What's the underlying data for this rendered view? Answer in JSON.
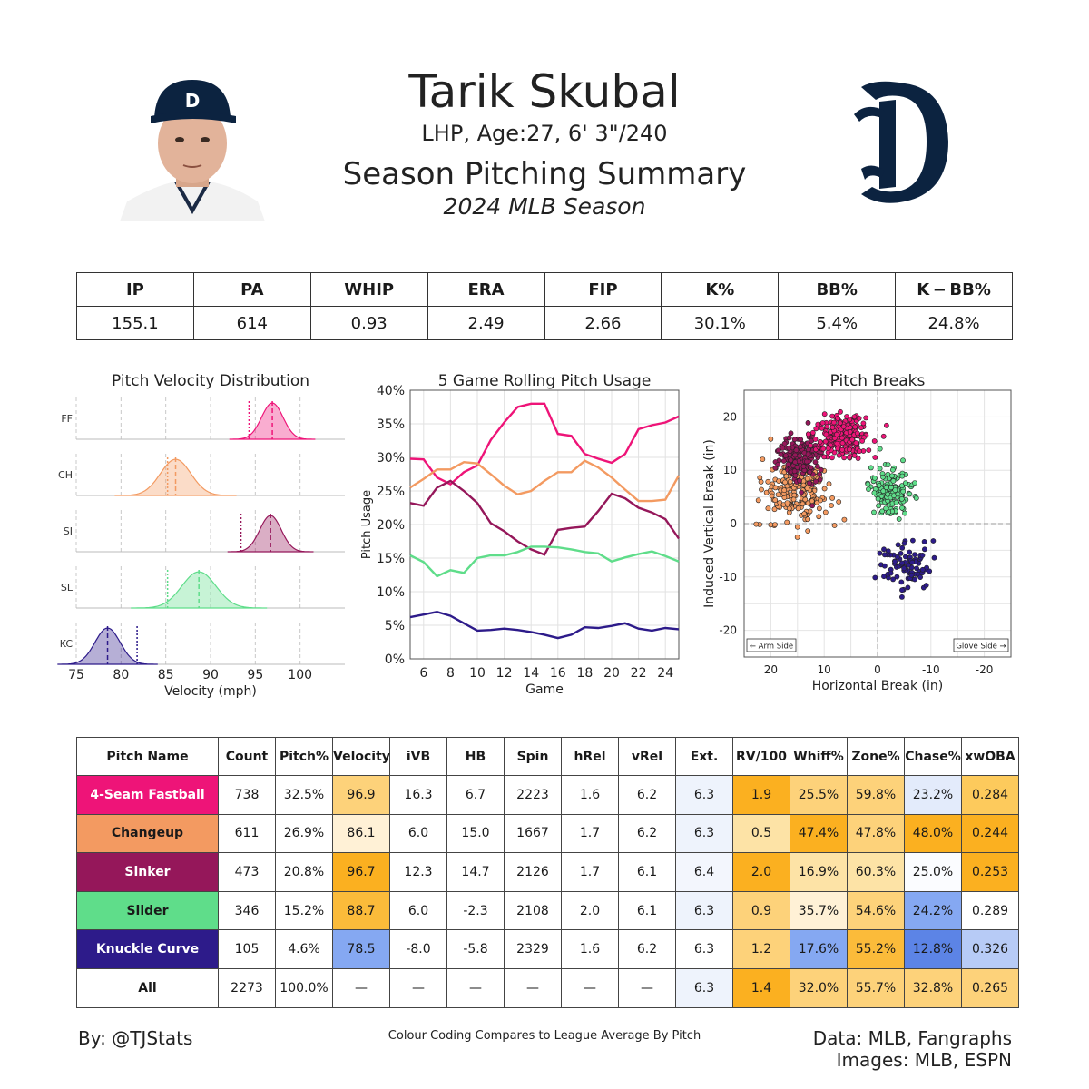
{
  "header": {
    "name": "Tarik Skubal",
    "bio": "LHP, Age:27, 6' 3\"/240",
    "subtitle": "Season Pitching Summary",
    "season": "2024 MLB Season"
  },
  "stats": {
    "headers": [
      "IP",
      "PA",
      "WHIP",
      "ERA",
      "FIP",
      "K%",
      "BB%",
      "K − BB%"
    ],
    "values": [
      "155.1",
      "614",
      "0.93",
      "2.49",
      "2.66",
      "30.1%",
      "5.4%",
      "24.8%"
    ]
  },
  "colors": {
    "FF": "#ee1478",
    "CH": "#f39a61",
    "SI": "#95175a",
    "SL": "#5fdd8a",
    "KC": "#2d1b8a"
  },
  "chart_data": [
    {
      "type": "area",
      "title": "Pitch Velocity Distribution",
      "xlabel": "Velocity (mph)",
      "ylabel": "",
      "xlim": [
        75,
        105
      ],
      "xticks": [
        "75",
        "80",
        "85",
        "90",
        "95",
        "100"
      ],
      "grid": true,
      "series": [
        {
          "name": "FF",
          "mean": 96.9,
          "sd": 1.2,
          "league_avg": 94.3
        },
        {
          "name": "CH",
          "mean": 86.1,
          "sd": 1.7,
          "league_avg": 85.2
        },
        {
          "name": "SI",
          "mean": 96.7,
          "sd": 1.2,
          "league_avg": 93.4
        },
        {
          "name": "SL",
          "mean": 88.7,
          "sd": 1.9,
          "league_avg": 85.2
        },
        {
          "name": "KC",
          "mean": 78.5,
          "sd": 1.4,
          "league_avg": 81.8
        }
      ]
    },
    {
      "type": "line",
      "title": "5 Game Rolling Pitch Usage",
      "xlabel": "Game",
      "ylabel": "Pitch Usage",
      "xlim": [
        5,
        25
      ],
      "ylim": [
        0,
        40
      ],
      "xticks": [
        "6",
        "8",
        "10",
        "12",
        "14",
        "16",
        "18",
        "20",
        "22",
        "24"
      ],
      "yticks": [
        "0%",
        "5%",
        "10%",
        "15%",
        "20%",
        "25%",
        "30%",
        "35%",
        "40%"
      ],
      "grid": true,
      "x": [
        5,
        6,
        7,
        8,
        9,
        10,
        11,
        12,
        13,
        14,
        15,
        16,
        17,
        18,
        19,
        20,
        21,
        22,
        23,
        24,
        25
      ],
      "series": [
        {
          "key": "FF",
          "values": [
            29.8,
            29.7,
            27,
            26,
            27.8,
            28.8,
            32.6,
            35.2,
            37.5,
            38,
            38,
            33.5,
            33.2,
            30.5,
            29.8,
            29.2,
            30.5,
            34.2,
            34.8,
            35.2,
            36.1
          ]
        },
        {
          "key": "CH",
          "values": [
            25.5,
            26.8,
            28.2,
            28.2,
            29.3,
            29.1,
            27.5,
            25.8,
            24.5,
            25,
            26.5,
            27.8,
            27.8,
            29.5,
            28.5,
            27,
            25.2,
            23.5,
            23.5,
            23.7,
            27.3
          ]
        },
        {
          "key": "SI",
          "values": [
            23.2,
            22.8,
            25.5,
            26.5,
            25,
            23.2,
            20.2,
            19,
            17.5,
            16.3,
            15.5,
            19.2,
            19.5,
            19.7,
            22,
            24.6,
            23.9,
            22.5,
            21.8,
            20.8,
            17.9
          ]
        },
        {
          "key": "SL",
          "values": [
            15.4,
            14.4,
            12.3,
            13.2,
            12.8,
            15,
            15.4,
            15.4,
            15.9,
            16.7,
            16.7,
            16.6,
            16.3,
            15.9,
            15.7,
            14.5,
            15.1,
            15.6,
            16,
            15.3,
            14.5
          ]
        },
        {
          "key": "KC",
          "values": [
            6.2,
            6.6,
            7,
            6.4,
            5.3,
            4.2,
            4.3,
            4.5,
            4.3,
            4,
            3.6,
            3.1,
            3.6,
            4.7,
            4.6,
            4.9,
            5.3,
            4.5,
            4.2,
            4.6,
            4.4
          ]
        }
      ]
    },
    {
      "type": "scatter",
      "title": "Pitch Breaks",
      "xlabel": "Horizontal Break (in)",
      "ylabel": "Induced Vertical Break (in)",
      "xlim": [
        25,
        -25
      ],
      "ylim": [
        -25,
        25
      ],
      "xticks": [
        "20",
        "10",
        "0",
        "-10",
        "-20"
      ],
      "yticks": [
        "20",
        "10",
        "0",
        "-10",
        "-20"
      ],
      "grid": true,
      "annotations": [
        "← Arm Side",
        "Glove Side →"
      ],
      "series": [
        {
          "key": "FF",
          "hb_mean": 6.7,
          "ivb_mean": 16.3,
          "sd_hb": 2.4,
          "sd_ivb": 2.0,
          "n": 260
        },
        {
          "key": "CH",
          "hb_mean": 15.0,
          "ivb_mean": 6.0,
          "sd_hb": 3.0,
          "sd_ivb": 3.0,
          "n": 220
        },
        {
          "key": "SI",
          "hb_mean": 14.7,
          "ivb_mean": 12.3,
          "sd_hb": 2.0,
          "sd_ivb": 1.9,
          "n": 180
        },
        {
          "key": "SL",
          "hb_mean": -2.3,
          "ivb_mean": 6.0,
          "sd_hb": 1.8,
          "sd_ivb": 2.2,
          "n": 150
        },
        {
          "key": "KC",
          "hb_mean": -5.8,
          "ivb_mean": -8.0,
          "sd_hb": 2.4,
          "sd_ivb": 2.2,
          "n": 90
        }
      ]
    },
    {
      "type": "table",
      "headers": [
        "Pitch Name",
        "Count",
        "Pitch%",
        "Velocity",
        "iVB",
        "HB",
        "Spin",
        "hRel",
        "vRel",
        "Ext.",
        "RV/100",
        "Whiff%",
        "Zone%",
        "Chase%",
        "xwOBA"
      ],
      "rows": [
        {
          "key": "FF",
          "name": "4-Seam Fastball",
          "text": "#ffffff",
          "cells": [
            "738",
            "32.5%",
            "96.9",
            "16.3",
            "6.7",
            "2223",
            "1.6",
            "6.2",
            "6.3",
            "1.9",
            "25.5%",
            "59.8%",
            "23.2%",
            "0.284"
          ],
          "bg": [
            "#ffffff",
            "#ffffff",
            "#fdd27a",
            "#ffffff",
            "#ffffff",
            "#ffffff",
            "#ffffff",
            "#ffffff",
            "#eef3fc",
            "#fbb020",
            "#fdd27a",
            "#fdd27a",
            "#e3ebfb",
            "#fdca5c"
          ]
        },
        {
          "key": "CH",
          "name": "Changeup",
          "text": "#1a1a1a",
          "cells": [
            "611",
            "26.9%",
            "86.1",
            "6.0",
            "15.0",
            "1667",
            "1.7",
            "6.2",
            "6.3",
            "0.5",
            "47.4%",
            "47.8%",
            "48.0%",
            "0.244"
          ],
          "bg": [
            "#ffffff",
            "#ffffff",
            "#fff1d6",
            "#ffffff",
            "#ffffff",
            "#ffffff",
            "#ffffff",
            "#ffffff",
            "#eef3fc",
            "#fde3a6",
            "#fbb020",
            "#fdd27a",
            "#fbb020",
            "#fbb020"
          ]
        },
        {
          "key": "SI",
          "name": "Sinker",
          "text": "#ffffff",
          "cells": [
            "473",
            "20.8%",
            "96.7",
            "12.3",
            "14.7",
            "2126",
            "1.7",
            "6.1",
            "6.4",
            "2.0",
            "16.9%",
            "60.3%",
            "25.0%",
            "0.253"
          ],
          "bg": [
            "#ffffff",
            "#ffffff",
            "#fbb020",
            "#ffffff",
            "#ffffff",
            "#ffffff",
            "#ffffff",
            "#ffffff",
            "#f3f6fd",
            "#fbb020",
            "#fde3a6",
            "#fde3a6",
            "#fbfcff",
            "#fbb020"
          ]
        },
        {
          "key": "SL",
          "name": "Slider",
          "text": "#1a1a1a",
          "cells": [
            "346",
            "15.2%",
            "88.7",
            "6.0",
            "-2.3",
            "2108",
            "2.0",
            "6.1",
            "6.3",
            "0.9",
            "35.7%",
            "54.6%",
            "24.2%",
            "0.289"
          ],
          "bg": [
            "#ffffff",
            "#ffffff",
            "#fbbb3a",
            "#ffffff",
            "#ffffff",
            "#ffffff",
            "#ffffff",
            "#ffffff",
            "#eef3fc",
            "#fdd27a",
            "#fff1d6",
            "#fdd27a",
            "#85a8f2",
            "#ffffff"
          ]
        },
        {
          "key": "KC",
          "name": "Knuckle Curve",
          "text": "#ffffff",
          "cells": [
            "105",
            "4.6%",
            "78.5",
            "-8.0",
            "-5.8",
            "2329",
            "1.6",
            "6.2",
            "6.3",
            "1.2",
            "17.6%",
            "55.2%",
            "12.8%",
            "0.326"
          ],
          "bg": [
            "#ffffff",
            "#ffffff",
            "#85a8f2",
            "#ffffff",
            "#ffffff",
            "#ffffff",
            "#ffffff",
            "#ffffff",
            "#ffffff",
            "#fdd27a",
            "#85a8f2",
            "#fbbb3a",
            "#5c84e6",
            "#b7cbf6"
          ]
        },
        {
          "key": "ALL",
          "name": "All",
          "text": "#1a1a1a",
          "cells": [
            "2273",
            "100.0%",
            "—",
            "—",
            "—",
            "—",
            "—",
            "—",
            "6.3",
            "1.4",
            "32.0%",
            "55.7%",
            "32.8%",
            "0.265"
          ],
          "bg": [
            "#ffffff",
            "#ffffff",
            "#ffffff",
            "#ffffff",
            "#ffffff",
            "#ffffff",
            "#ffffff",
            "#ffffff",
            "#eef3fc",
            "#fbb020",
            "#fdd27a",
            "#fdd27a",
            "#fdd27a",
            "#fdd27a"
          ]
        }
      ]
    }
  ],
  "footer": {
    "by": "By: @TJStats",
    "note": "Colour Coding Compares to League Average By Pitch",
    "data_source": "Data: MLB, Fangraphs",
    "images_source": "Images: MLB, ESPN"
  }
}
